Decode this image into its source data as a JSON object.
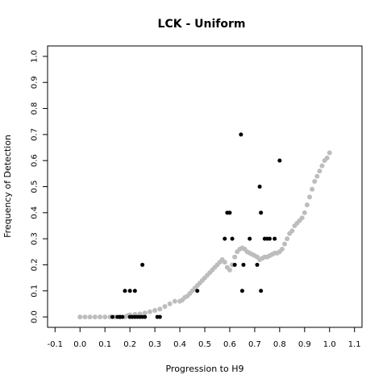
{
  "chart_data": {
    "type": "scatter",
    "title": "LCK - Uniform",
    "xlabel": "Progression to H9",
    "ylabel": "Frequency of Detection",
    "xlim": [
      -0.13,
      1.13
    ],
    "ylim": [
      -0.04,
      1.04
    ],
    "xticks": [
      "-0.1",
      "0.0",
      "0.1",
      "0.2",
      "0.3",
      "0.4",
      "0.5",
      "0.6",
      "0.7",
      "0.8",
      "0.9",
      "1.0",
      "1.1"
    ],
    "yticks": [
      "0.0",
      "0.1",
      "0.2",
      "0.3",
      "0.4",
      "0.5",
      "0.6",
      "0.7",
      "0.8",
      "0.9",
      "1.0"
    ],
    "grid": false,
    "series": [
      {
        "color": "#bdbdbd",
        "points": [
          [
            0.0,
            0.0
          ],
          [
            0.02,
            0.0
          ],
          [
            0.04,
            0.0
          ],
          [
            0.06,
            0.0
          ],
          [
            0.08,
            0.0
          ],
          [
            0.1,
            0.0
          ],
          [
            0.12,
            0.0
          ],
          [
            0.14,
            0.0
          ],
          [
            0.16,
            0.0
          ],
          [
            0.18,
            0.0
          ],
          [
            0.19,
            0.005
          ],
          [
            0.2,
            0.008
          ],
          [
            0.22,
            0.01
          ],
          [
            0.24,
            0.012
          ],
          [
            0.26,
            0.015
          ],
          [
            0.28,
            0.02
          ],
          [
            0.3,
            0.025
          ],
          [
            0.32,
            0.03
          ],
          [
            0.34,
            0.04
          ],
          [
            0.36,
            0.05
          ],
          [
            0.38,
            0.06
          ],
          [
            0.4,
            0.06
          ],
          [
            0.41,
            0.065
          ],
          [
            0.42,
            0.075
          ],
          [
            0.43,
            0.08
          ],
          [
            0.44,
            0.09
          ],
          [
            0.45,
            0.1
          ],
          [
            0.46,
            0.11
          ],
          [
            0.47,
            0.12
          ],
          [
            0.48,
            0.13
          ],
          [
            0.49,
            0.14
          ],
          [
            0.5,
            0.15
          ],
          [
            0.51,
            0.16
          ],
          [
            0.52,
            0.17
          ],
          [
            0.53,
            0.18
          ],
          [
            0.54,
            0.19
          ],
          [
            0.55,
            0.2
          ],
          [
            0.56,
            0.21
          ],
          [
            0.57,
            0.22
          ],
          [
            0.58,
            0.21
          ],
          [
            0.59,
            0.19
          ],
          [
            0.6,
            0.18
          ],
          [
            0.61,
            0.2
          ],
          [
            0.62,
            0.23
          ],
          [
            0.63,
            0.25
          ],
          [
            0.64,
            0.26
          ],
          [
            0.65,
            0.265
          ],
          [
            0.66,
            0.26
          ],
          [
            0.67,
            0.25
          ],
          [
            0.68,
            0.245
          ],
          [
            0.69,
            0.24
          ],
          [
            0.7,
            0.235
          ],
          [
            0.71,
            0.23
          ],
          [
            0.72,
            0.22
          ],
          [
            0.73,
            0.225
          ],
          [
            0.74,
            0.23
          ],
          [
            0.75,
            0.23
          ],
          [
            0.76,
            0.235
          ],
          [
            0.77,
            0.24
          ],
          [
            0.78,
            0.245
          ],
          [
            0.79,
            0.245
          ],
          [
            0.8,
            0.25
          ],
          [
            0.81,
            0.26
          ],
          [
            0.82,
            0.28
          ],
          [
            0.83,
            0.3
          ],
          [
            0.84,
            0.32
          ],
          [
            0.85,
            0.33
          ],
          [
            0.86,
            0.35
          ],
          [
            0.87,
            0.36
          ],
          [
            0.88,
            0.37
          ],
          [
            0.89,
            0.38
          ],
          [
            0.9,
            0.4
          ],
          [
            0.91,
            0.43
          ],
          [
            0.92,
            0.46
          ],
          [
            0.93,
            0.49
          ],
          [
            0.94,
            0.52
          ],
          [
            0.95,
            0.54
          ],
          [
            0.96,
            0.56
          ],
          [
            0.97,
            0.58
          ],
          [
            0.98,
            0.6
          ],
          [
            0.99,
            0.61
          ],
          [
            1.0,
            0.63
          ]
        ]
      },
      {
        "color": "#000000",
        "points": [
          [
            0.13,
            0.0
          ],
          [
            0.15,
            0.0
          ],
          [
            0.16,
            0.0
          ],
          [
            0.17,
            0.0
          ],
          [
            0.2,
            0.0
          ],
          [
            0.21,
            0.0
          ],
          [
            0.22,
            0.0
          ],
          [
            0.23,
            0.0
          ],
          [
            0.24,
            0.0
          ],
          [
            0.25,
            0.0
          ],
          [
            0.26,
            0.0
          ],
          [
            0.31,
            0.0
          ],
          [
            0.32,
            0.0
          ],
          [
            0.18,
            0.1
          ],
          [
            0.2,
            0.1
          ],
          [
            0.22,
            0.1
          ],
          [
            0.25,
            0.2
          ],
          [
            0.47,
            0.1
          ],
          [
            0.58,
            0.3
          ],
          [
            0.59,
            0.4
          ],
          [
            0.6,
            0.4
          ],
          [
            0.61,
            0.3
          ],
          [
            0.62,
            0.2
          ],
          [
            0.645,
            0.7
          ],
          [
            0.65,
            0.1
          ],
          [
            0.655,
            0.2
          ],
          [
            0.68,
            0.3
          ],
          [
            0.71,
            0.2
          ],
          [
            0.72,
            0.5
          ],
          [
            0.725,
            0.4
          ],
          [
            0.725,
            0.1
          ],
          [
            0.74,
            0.3
          ],
          [
            0.75,
            0.3
          ],
          [
            0.76,
            0.3
          ],
          [
            0.78,
            0.3
          ],
          [
            0.8,
            0.6
          ]
        ]
      }
    ]
  }
}
